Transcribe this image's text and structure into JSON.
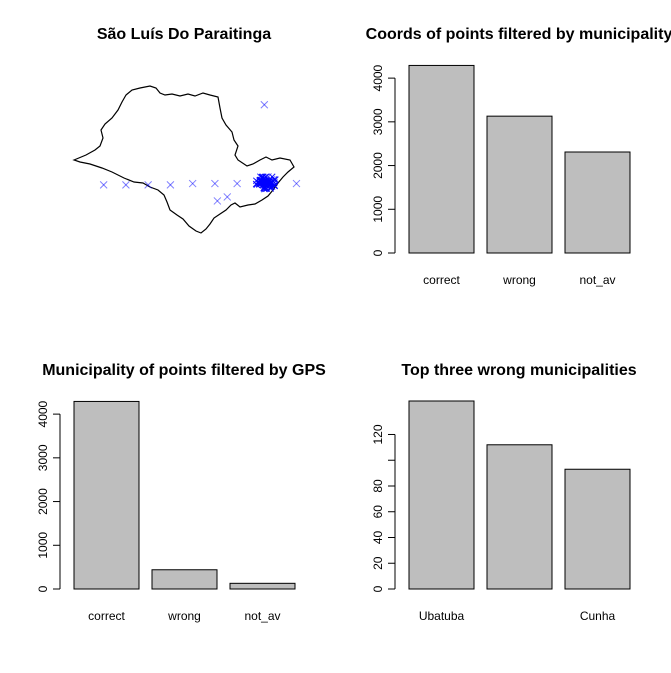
{
  "colors": {
    "bar_fill": "#bebebe",
    "points": "#0000ff",
    "outline": "#000000"
  },
  "chart_data": [
    {
      "type": "scatter",
      "title": "São Luís Do Paraitinga",
      "description_map_outline": "São Paulo state outline",
      "axes": "none",
      "points": [
        {
          "x": -51.9,
          "y": -23.5
        },
        {
          "x": -51.0,
          "y": -23.5
        },
        {
          "x": -50.1,
          "y": -23.5
        },
        {
          "x": -49.2,
          "y": -23.5
        },
        {
          "x": -48.3,
          "y": -23.45
        },
        {
          "x": -47.4,
          "y": -23.45
        },
        {
          "x": -46.5,
          "y": -23.45
        },
        {
          "x": -45.3,
          "y": -23.45
        },
        {
          "x": -45.25,
          "y": -23.2
        },
        {
          "x": -45.1,
          "y": -23.3
        },
        {
          "x": -47.3,
          "y": -24.1
        },
        {
          "x": -46.9,
          "y": -23.95
        },
        {
          "x": -44.1,
          "y": -23.45
        },
        {
          "x": -45.4,
          "y": -20.5
        }
      ],
      "cluster_center": {
        "x": -45.35,
        "y": -23.4
      }
    },
    {
      "type": "bar",
      "title": "Coords of points filtered by municipality",
      "categories": [
        "correct",
        "wrong",
        "not_av"
      ],
      "values": [
        4290,
        3130,
        2310
      ],
      "ylim": [
        0,
        4300
      ],
      "yticks": [
        "0",
        "1000",
        "2000",
        "3000",
        "4000"
      ]
    },
    {
      "type": "bar",
      "title": "Municipality of points filtered by GPS",
      "categories": [
        "correct",
        "wrong",
        "not_av"
      ],
      "values": [
        4290,
        440,
        130
      ],
      "ylim": [
        0,
        4300
      ],
      "yticks": [
        "0",
        "1000",
        "2000",
        "3000",
        "4000"
      ]
    },
    {
      "type": "bar",
      "title": "Top three wrong municipalities",
      "categories": [
        "Ubatuba",
        "",
        "Cunha"
      ],
      "values": [
        146,
        112,
        93
      ],
      "ylim": [
        0,
        146
      ],
      "yticks": [
        "0",
        "20",
        "40",
        "60",
        "80",
        "",
        "120"
      ]
    }
  ]
}
